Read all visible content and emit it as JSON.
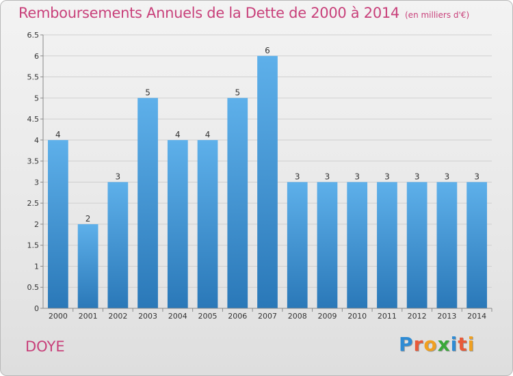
{
  "title": "Remboursements Annuels de la Dette de 2000 à 2014",
  "unit_label": "(en milliers d'€)",
  "commune": "DOYE",
  "brand": {
    "text": "Proxiti",
    "letter_colors": [
      "#2e8bd4",
      "#e85a3a",
      "#f0a020",
      "#3aa83a",
      "#2e8bd4",
      "#e85a3a",
      "#f0a020"
    ]
  },
  "colors": {
    "title": "#c8407a",
    "bar_top": "#5eb0ea",
    "bar_bottom": "#2a78b8",
    "grid": "#cfcfcf",
    "axis_text": "#333333"
  },
  "chart_data": {
    "type": "bar",
    "title": "Remboursements Annuels de la Dette de 2000 à 2014",
    "xlabel": "",
    "ylabel": "",
    "categories": [
      "2000",
      "2001",
      "2002",
      "2003",
      "2004",
      "2005",
      "2006",
      "2007",
      "2008",
      "2009",
      "2010",
      "2011",
      "2012",
      "2013",
      "2014"
    ],
    "values": [
      4,
      2,
      3,
      5,
      4,
      4,
      5,
      6,
      3,
      3,
      3,
      3,
      3,
      3,
      3
    ],
    "data_labels": [
      "4",
      "2",
      "3",
      "5",
      "4",
      "4",
      "5",
      "6",
      "3",
      "3",
      "3",
      "3",
      "3",
      "3",
      "3"
    ],
    "ylim": [
      0,
      6.5
    ],
    "yticks": [
      0,
      0.5,
      1,
      1.5,
      2,
      2.5,
      3,
      3.5,
      4,
      4.5,
      5,
      5.5,
      6,
      6.5
    ],
    "ytick_labels": [
      "0",
      "0.5",
      "1",
      "1.5",
      "2",
      "2.5",
      "3",
      "3.5",
      "4",
      "4.5",
      "5",
      "5.5",
      "6",
      "6.5"
    ],
    "grid": true
  }
}
